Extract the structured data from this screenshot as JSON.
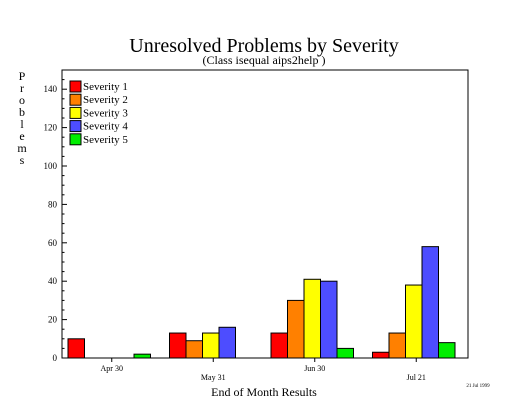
{
  "chart_data": {
    "type": "bar",
    "title": "Unresolved Problems by Severity",
    "subtitle": "(Class isequal aips2help )",
    "xlabel": "End of Month Results",
    "ylabel": "Problems",
    "ylim": [
      0,
      150
    ],
    "yticks": [
      0,
      20,
      40,
      60,
      80,
      100,
      120,
      140
    ],
    "grid": false,
    "legend_position": "top-left",
    "categories": [
      "Apr 30",
      "May 31",
      "Jun 30",
      "Jul 21"
    ],
    "series": [
      {
        "name": "Severity 1",
        "color": "#ff0000",
        "values": [
          10,
          13,
          13,
          3
        ]
      },
      {
        "name": "Severity 2",
        "color": "#ff8000",
        "values": [
          0,
          9,
          30,
          13
        ]
      },
      {
        "name": "Severity 3",
        "color": "#ffff00",
        "values": [
          0,
          13,
          41,
          38
        ]
      },
      {
        "name": "Severity 4",
        "color": "#4d4dff",
        "values": [
          0,
          16,
          40,
          58
        ]
      },
      {
        "name": "Severity 5",
        "color": "#00ee00",
        "values": [
          2,
          0,
          5,
          8
        ]
      }
    ],
    "footnote": "21 Jul 1999"
  }
}
